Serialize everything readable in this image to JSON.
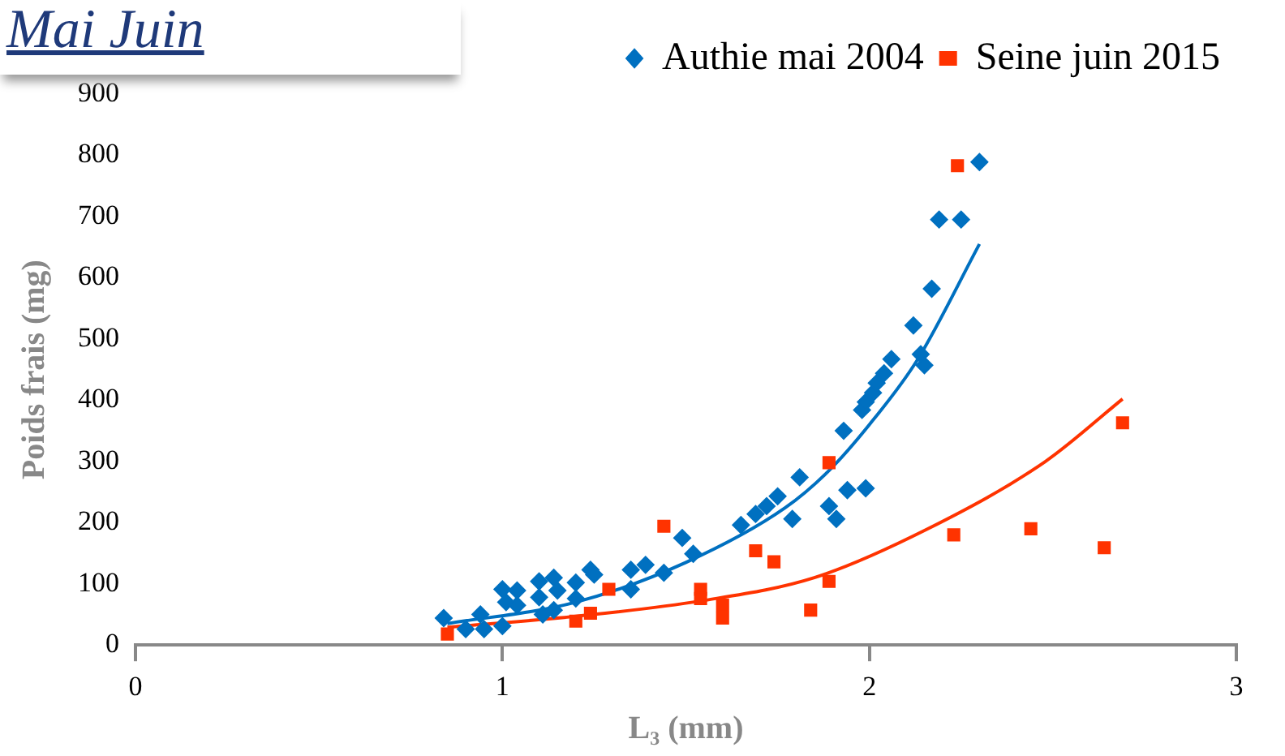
{
  "chart_data": {
    "type": "scatter",
    "title": "Mai Juin",
    "xlabel": "L₃ (mm)",
    "ylabel": "Poids frais (mg)",
    "xlim": [
      0,
      3
    ],
    "xticks": [
      0,
      1,
      2,
      3
    ],
    "ylim": [
      0,
      900
    ],
    "yticks": [
      0,
      100,
      200,
      300,
      400,
      500,
      600,
      700,
      800,
      900
    ],
    "grid": false,
    "legend": "top right",
    "series": [
      {
        "name": "Authie mai 2004",
        "color": "#0070c0",
        "marker": "diamond",
        "x": [
          0.84,
          0.9,
          0.94,
          0.95,
          1.0,
          1.0,
          1.01,
          1.04,
          1.04,
          1.1,
          1.1,
          1.11,
          1.14,
          1.14,
          1.15,
          1.2,
          1.2,
          1.24,
          1.25,
          1.35,
          1.35,
          1.39,
          1.44,
          1.49,
          1.52,
          1.65,
          1.69,
          1.72,
          1.75,
          1.79,
          1.81,
          1.89,
          1.91,
          1.93,
          1.94,
          1.98,
          1.99,
          1.99,
          2.01,
          2.02,
          2.04,
          2.06,
          2.12,
          2.14,
          2.15,
          2.17,
          2.19,
          2.25,
          2.3
        ],
        "values": [
          44,
          26,
          50,
          26,
          31,
          91,
          70,
          89,
          65,
          78,
          104,
          50,
          110,
          57,
          89,
          102,
          76,
          123,
          115,
          123,
          91,
          131,
          118,
          175,
          149,
          196,
          214,
          227,
          243,
          206,
          274,
          227,
          206,
          350,
          253,
          384,
          397,
          256,
          412,
          428,
          444,
          467,
          522,
          475,
          457,
          582,
          695,
          695,
          789
        ]
      },
      {
        "name": "Seine juin 2015",
        "color": "#ff3300",
        "marker": "square",
        "x": [
          0.85,
          1.2,
          1.24,
          1.29,
          1.44,
          1.54,
          1.54,
          1.6,
          1.6,
          1.69,
          1.74,
          1.84,
          1.89,
          1.89,
          2.23,
          2.24,
          2.44,
          2.64,
          2.69
        ],
        "values": [
          18,
          39,
          52,
          91,
          194,
          91,
          76,
          65,
          44,
          154,
          136,
          57,
          104,
          298,
          180,
          783,
          190,
          159,
          363
        ]
      },
      {
        "type": "line",
        "color": "#0070c0",
        "marker": "none",
        "line_style": "solid",
        "x": [
          0.85,
          1.2,
          1.5,
          1.77,
          1.89,
          2.0,
          2.13,
          2.3
        ],
        "values": [
          35,
          70,
          135,
          224,
          285,
          360,
          465,
          655
        ]
      },
      {
        "type": "line",
        "color": "#ff3300",
        "marker": "none",
        "line_style": "solid",
        "x": [
          0.85,
          1.2,
          1.54,
          1.85,
          2.16,
          2.48,
          2.69
        ],
        "values": [
          29,
          47,
          72,
          110,
          190,
          300,
          402
        ]
      }
    ]
  }
}
